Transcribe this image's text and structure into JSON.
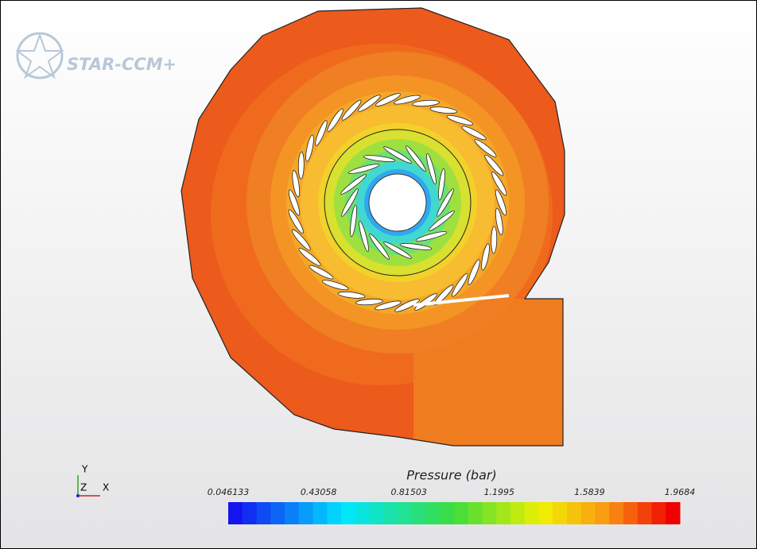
{
  "logo": "STAR-CCM+",
  "triad": {
    "y": "Y",
    "z": "Z",
    "x": "X"
  },
  "legend": {
    "title": "Pressure (bar)",
    "ticks": [
      0.046133,
      0.43058,
      0.81503,
      1.1995,
      1.5839,
      1.9684
    ]
  }
}
